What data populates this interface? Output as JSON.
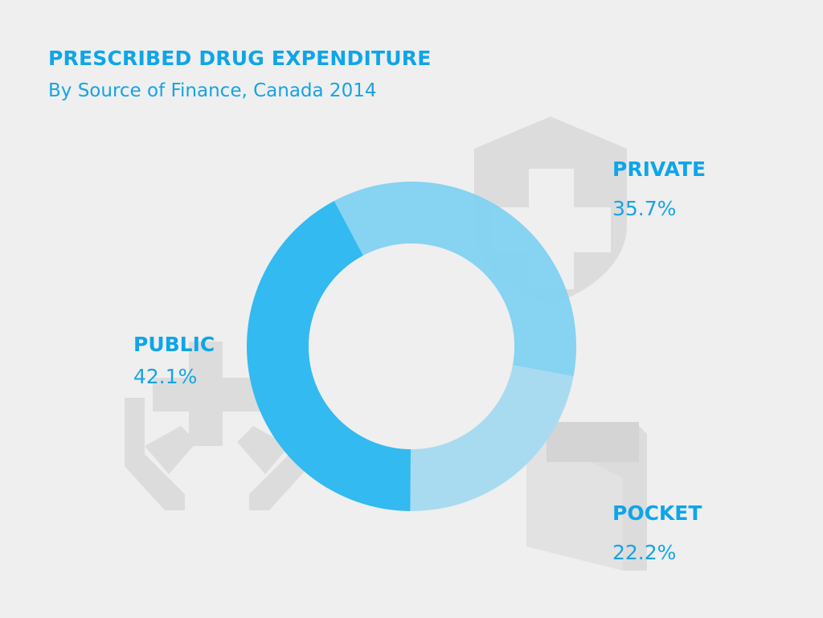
{
  "header": {
    "title": "PRESCRIBED DRUG EXPENDITURE",
    "subtitle": "By Source of Finance, Canada 2014"
  },
  "colors": {
    "public": "#33baf0",
    "private": "#7dd0f2",
    "pocket": "#a9dbf0",
    "text": "#0ea5e9",
    "icon": "#d9d9d9"
  },
  "icons": [
    "shield-plus-icon",
    "hands-plus-icon",
    "wallet-icon"
  ],
  "chart_data": {
    "type": "pie",
    "title": "PRESCRIBED DRUG EXPENDITURE",
    "subtitle": "By Source of Finance, Canada 2014",
    "categories": [
      "PRIVATE",
      "POCKET",
      "PUBLIC"
    ],
    "values": [
      35.7,
      22.2,
      42.1
    ],
    "value_labels": [
      "35.7%",
      "22.2%",
      "42.1%"
    ],
    "donut": true,
    "legend": "none"
  }
}
